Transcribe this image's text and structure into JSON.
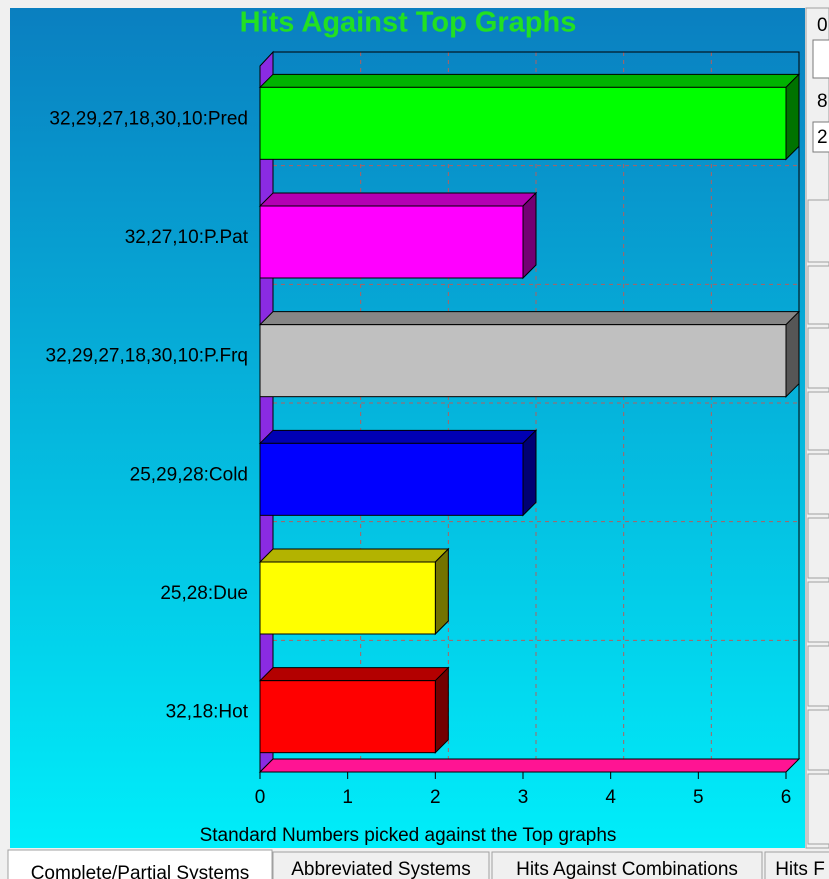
{
  "chart_data": {
    "type": "bar3d",
    "orientation": "horizontal",
    "title": "Hits Against Top Graphs",
    "categories": [
      "32,29,27,18,30,10:Pred",
      "32,27,10:P.Pat",
      "32,29,27,18,30,10:P.Frq",
      "25,29,28:Cold",
      "25,28:Due",
      "32,18:Hot"
    ],
    "values": [
      6,
      3,
      6,
      3,
      2,
      2
    ],
    "colors": [
      "#00ff00",
      "#ff00ff",
      "#c0c0c0",
      "#0000ff",
      "#ffff00",
      "#ff0000"
    ],
    "xlim": [
      0,
      6
    ],
    "xticks": [
      0,
      1,
      2,
      3,
      4,
      5,
      6
    ],
    "grid": true,
    "xlabel": "Standard Numbers picked against the Top graphs"
  },
  "tabs": [
    "Complete/Partial Systems",
    "Abbreviated Systems",
    "Hits Against Combinations",
    "Hits F"
  ],
  "panel": [
    "0",
    "8",
    "2"
  ]
}
